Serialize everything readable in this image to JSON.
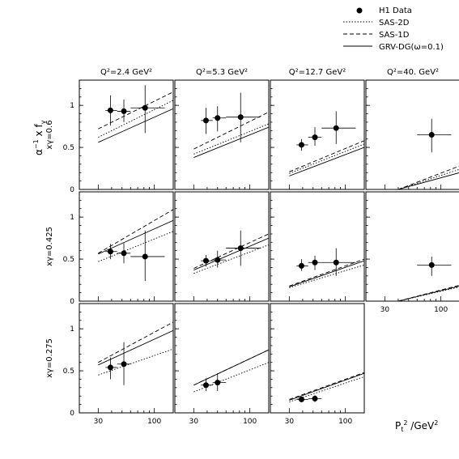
{
  "chart_data": {
    "type": "scatter",
    "title": "",
    "xlabel": "P_t^2 /GeV^2",
    "ylabel": "α^{-1} x f_γ",
    "x_scale": "log",
    "xlim": [
      20,
      150
    ],
    "ylim": [
      0,
      1.3
    ],
    "x_ticks": [
      30,
      100
    ],
    "y_ticks": [
      0,
      0.5,
      1
    ],
    "legend": {
      "position": "top-right",
      "entries": [
        {
          "label": "H1 Data",
          "style": "marker"
        },
        {
          "label": "SAS-2D",
          "style": "dotted"
        },
        {
          "label": "SAS-1D",
          "style": "dashed"
        },
        {
          "label": "GRV-DG(ω=0.1)",
          "style": "solid"
        }
      ]
    },
    "columns": [
      "Q²=2.4 GeV²",
      "Q²=5.3 GeV²",
      "Q²=12.7 GeV²",
      "Q²=40. GeV²"
    ],
    "rows": [
      "xγ=0.6",
      "xγ=0.425",
      "xγ=0.275"
    ],
    "panels": [
      {
        "row": 0,
        "col": 0,
        "points": [
          {
            "x": 39,
            "y": 0.94,
            "xerr": [
              35,
              45
            ],
            "yerr": [
              0.76,
              1.12
            ]
          },
          {
            "x": 52,
            "y": 0.93,
            "xerr": [
              45,
              60
            ],
            "yerr": [
              0.8,
              1.07
            ]
          },
          {
            "x": 82,
            "y": 0.97,
            "xerr": [
              60,
              125
            ],
            "yerr": [
              0.67,
              1.24
            ]
          }
        ],
        "curves": {
          "sas2d": [
            [
              30,
              0.62
            ],
            [
              150,
              1.06
            ]
          ],
          "sas1d": [
            [
              30,
              0.72
            ],
            [
              150,
              1.16
            ]
          ],
          "grv": [
            [
              30,
              0.56
            ],
            [
              150,
              0.96
            ]
          ]
        }
      },
      {
        "row": 0,
        "col": 1,
        "points": [
          {
            "x": 39,
            "y": 0.82,
            "xerr": [
              35,
              45
            ],
            "yerr": [
              0.66,
              0.97
            ]
          },
          {
            "x": 50,
            "y": 0.85,
            "xerr": [
              45,
              60
            ],
            "yerr": [
              0.69,
              0.99
            ]
          },
          {
            "x": 82,
            "y": 0.86,
            "xerr": [
              60,
              125
            ],
            "yerr": [
              0.56,
              1.15
            ]
          }
        ],
        "curves": {
          "sas2d": [
            [
              30,
              0.42
            ],
            [
              150,
              0.78
            ]
          ],
          "sas1d": [
            [
              30,
              0.48
            ],
            [
              150,
              0.92
            ]
          ],
          "grv": [
            [
              30,
              0.38
            ],
            [
              150,
              0.74
            ]
          ]
        }
      },
      {
        "row": 0,
        "col": 2,
        "points": [
          {
            "x": 39,
            "y": 0.53,
            "xerr": [
              35,
              45
            ],
            "yerr": [
              0.46,
              0.6
            ]
          },
          {
            "x": 52,
            "y": 0.62,
            "xerr": [
              45,
              60
            ],
            "yerr": [
              0.52,
              0.74
            ]
          },
          {
            "x": 82,
            "y": 0.73,
            "xerr": [
              60,
              125
            ],
            "yerr": [
              0.54,
              0.93
            ]
          }
        ],
        "curves": {
          "sas2d": [
            [
              30,
              0.19
            ],
            [
              150,
              0.54
            ]
          ],
          "sas1d": [
            [
              30,
              0.21
            ],
            [
              150,
              0.58
            ]
          ],
          "grv": [
            [
              30,
              0.16
            ],
            [
              150,
              0.5
            ]
          ]
        }
      },
      {
        "row": 0,
        "col": 3,
        "points": [
          {
            "x": 82,
            "y": 0.65,
            "xerr": [
              60,
              125
            ],
            "yerr": [
              0.44,
              0.84
            ]
          }
        ],
        "curves": {
          "sas2d": [
            [
              40,
              0.0
            ],
            [
              150,
              0.24
            ]
          ],
          "sas1d": [
            [
              40,
              0.0
            ],
            [
              150,
              0.28
            ]
          ],
          "grv": [
            [
              40,
              0.0
            ],
            [
              150,
              0.2
            ]
          ]
        }
      },
      {
        "row": 1,
        "col": 0,
        "points": [
          {
            "x": 39,
            "y": 0.59,
            "xerr": [
              35,
              45
            ],
            "yerr": [
              0.5,
              0.68
            ]
          },
          {
            "x": 52,
            "y": 0.57,
            "xerr": [
              45,
              60
            ],
            "yerr": [
              0.45,
              0.69
            ]
          },
          {
            "x": 82,
            "y": 0.53,
            "xerr": [
              60,
              125
            ],
            "yerr": [
              0.24,
              0.84
            ]
          }
        ],
        "curves": {
          "sas2d": [
            [
              30,
              0.47
            ],
            [
              150,
              0.83
            ]
          ],
          "sas1d": [
            [
              30,
              0.57
            ],
            [
              150,
              1.09
            ]
          ],
          "grv": [
            [
              30,
              0.56
            ],
            [
              150,
              0.96
            ]
          ]
        }
      },
      {
        "row": 1,
        "col": 1,
        "points": [
          {
            "x": 39,
            "y": 0.48,
            "xerr": [
              35,
              45
            ],
            "yerr": [
              0.41,
              0.55
            ]
          },
          {
            "x": 50,
            "y": 0.49,
            "xerr": [
              45,
              60
            ],
            "yerr": [
              0.4,
              0.6
            ]
          },
          {
            "x": 82,
            "y": 0.63,
            "xerr": [
              60,
              125
            ],
            "yerr": [
              0.42,
              0.84
            ]
          }
        ],
        "curves": {
          "sas2d": [
            [
              30,
              0.33
            ],
            [
              150,
              0.67
            ]
          ],
          "sas1d": [
            [
              30,
              0.39
            ],
            [
              150,
              0.8
            ]
          ],
          "grv": [
            [
              30,
              0.37
            ],
            [
              150,
              0.75
            ]
          ]
        }
      },
      {
        "row": 1,
        "col": 2,
        "points": [
          {
            "x": 39,
            "y": 0.42,
            "xerr": [
              35,
              45
            ],
            "yerr": [
              0.36,
              0.5
            ]
          },
          {
            "x": 52,
            "y": 0.46,
            "xerr": [
              45,
              60
            ],
            "yerr": [
              0.37,
              0.54
            ]
          },
          {
            "x": 82,
            "y": 0.46,
            "xerr": [
              60,
              125
            ],
            "yerr": [
              0.3,
              0.63
            ]
          }
        ],
        "curves": {
          "sas2d": [
            [
              30,
              0.16
            ],
            [
              150,
              0.43
            ]
          ],
          "sas1d": [
            [
              30,
              0.18
            ],
            [
              150,
              0.5
            ]
          ],
          "grv": [
            [
              30,
              0.17
            ],
            [
              150,
              0.48
            ]
          ]
        }
      },
      {
        "row": 1,
        "col": 3,
        "points": [
          {
            "x": 82,
            "y": 0.43,
            "xerr": [
              60,
              125
            ],
            "yerr": [
              0.3,
              0.53
            ]
          }
        ],
        "curves": {
          "sas2d": [
            [
              40,
              0.0
            ],
            [
              150,
              0.17
            ]
          ],
          "sas1d": [
            [
              40,
              0.0
            ],
            [
              150,
              0.19
            ]
          ],
          "grv": [
            [
              40,
              0.0
            ],
            [
              150,
              0.18
            ]
          ]
        }
      },
      {
        "row": 2,
        "col": 0,
        "points": [
          {
            "x": 39,
            "y": 0.54,
            "xerr": [
              35,
              45
            ],
            "yerr": [
              0.4,
              0.66
            ]
          },
          {
            "x": 52,
            "y": 0.58,
            "xerr": [
              45,
              60
            ],
            "yerr": [
              0.33,
              0.84
            ]
          }
        ],
        "curves": {
          "sas2d": [
            [
              30,
              0.45
            ],
            [
              150,
              0.76
            ]
          ],
          "sas1d": [
            [
              30,
              0.6
            ],
            [
              150,
              1.08
            ]
          ],
          "grv": [
            [
              30,
              0.57
            ],
            [
              150,
              0.98
            ]
          ]
        }
      },
      {
        "row": 2,
        "col": 1,
        "points": [
          {
            "x": 39,
            "y": 0.33,
            "xerr": [
              35,
              45
            ],
            "yerr": [
              0.26,
              0.41
            ]
          },
          {
            "x": 50,
            "y": 0.36,
            "xerr": [
              45,
              60
            ],
            "yerr": [
              0.26,
              0.47
            ]
          }
        ],
        "curves": {
          "sas2d": [
            [
              30,
              0.25
            ],
            [
              150,
              0.6
            ]
          ],
          "sas1d": [
            [
              30,
              0.33
            ],
            [
              150,
              0.75
            ]
          ],
          "grv": [
            [
              30,
              0.33
            ],
            [
              150,
              0.75
            ]
          ]
        }
      },
      {
        "row": 2,
        "col": 2,
        "points": [
          {
            "x": 39,
            "y": 0.16,
            "xerr": [
              35,
              45
            ],
            "yerr": [
              0.13,
              0.19
            ]
          },
          {
            "x": 52,
            "y": 0.17,
            "xerr": [
              45,
              60
            ],
            "yerr": [
              0.13,
              0.21
            ]
          }
        ],
        "curves": {
          "sas2d": [
            [
              30,
              0.13
            ],
            [
              150,
              0.43
            ]
          ],
          "sas1d": [
            [
              30,
              0.16
            ],
            [
              150,
              0.48
            ]
          ],
          "grv": [
            [
              30,
              0.15
            ],
            [
              150,
              0.47
            ]
          ]
        }
      }
    ]
  }
}
